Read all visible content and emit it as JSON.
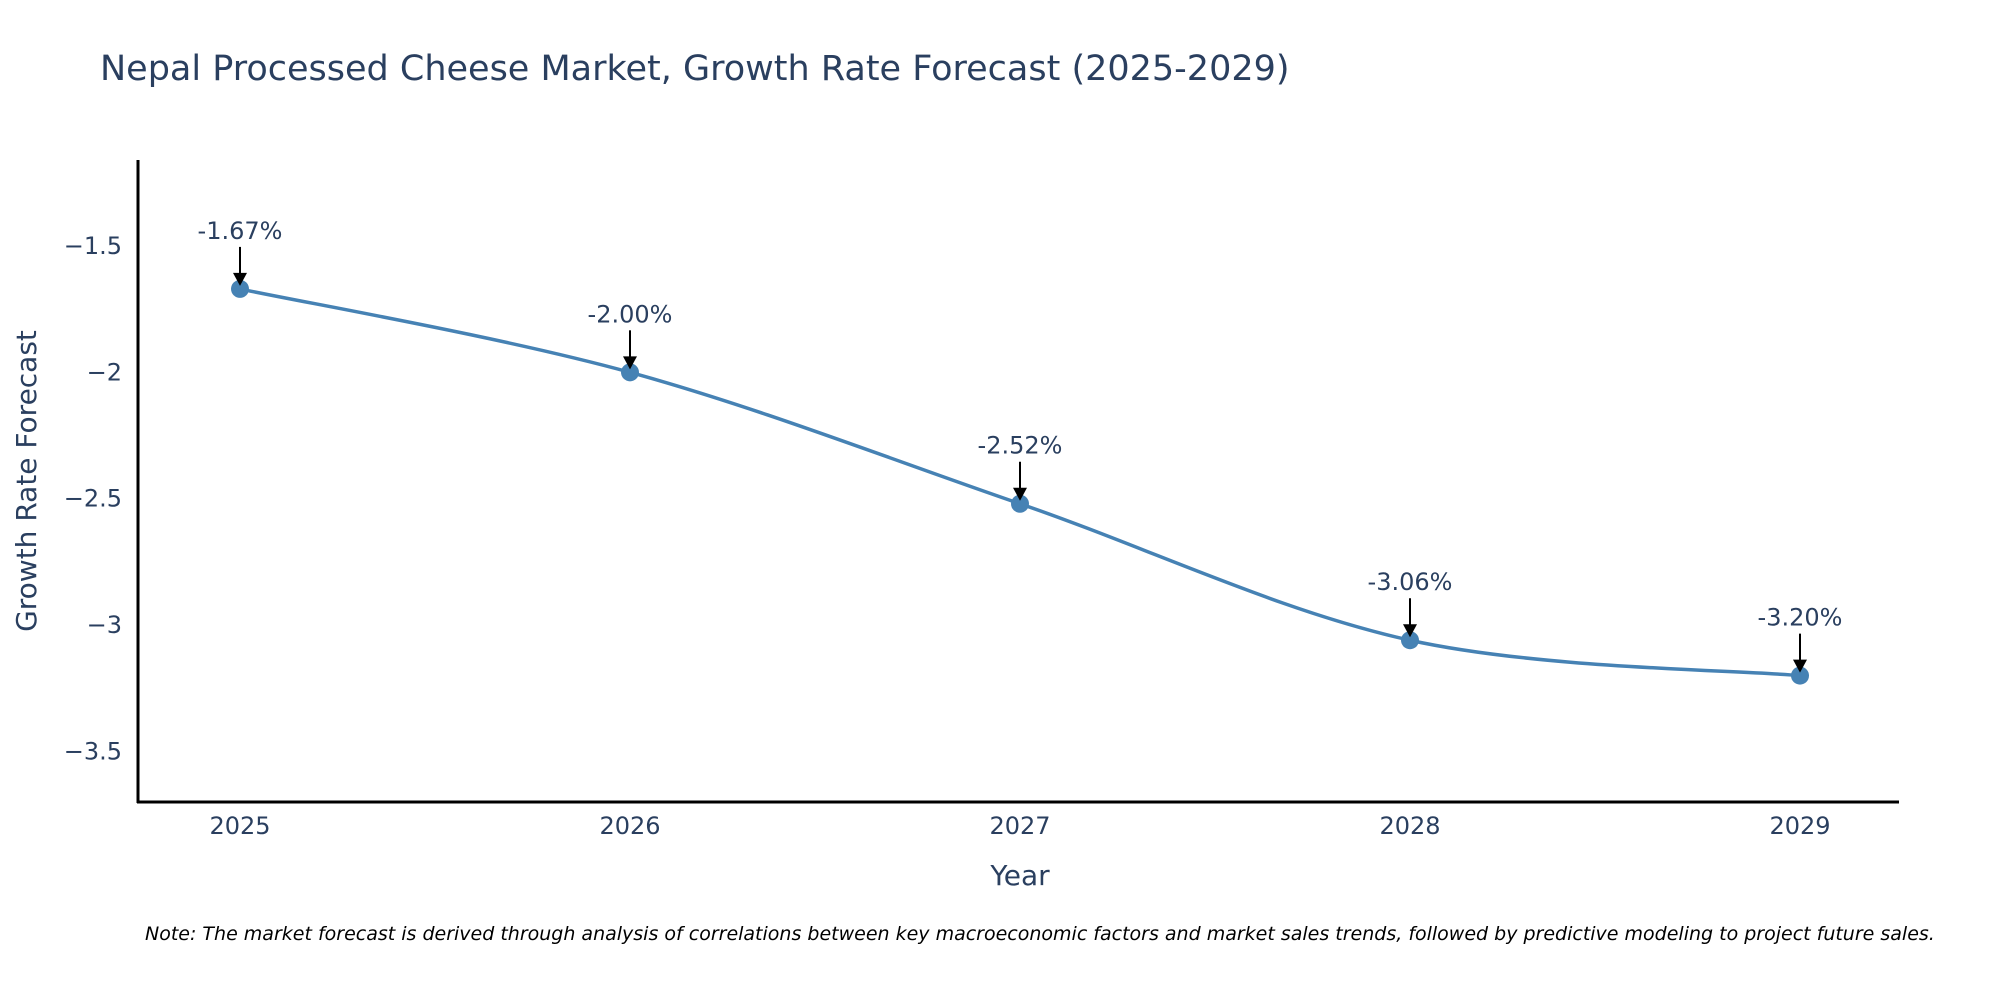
{
  "chart_data": {
    "type": "line",
    "title": "Nepal Processed Cheese Market, Growth Rate Forecast (2025-2029)",
    "xlabel": "Year",
    "ylabel": "Growth Rate Forecast",
    "categories": [
      "2025",
      "2026",
      "2027",
      "2028",
      "2029"
    ],
    "series": [
      {
        "name": "Growth Rate Forecast",
        "values": [
          -1.67,
          -2.0,
          -2.52,
          -3.06,
          -3.2
        ],
        "color": "#4682b4",
        "line_shape": "spline",
        "markers": true
      }
    ],
    "annotations": [
      "-1.67%",
      "-2.00%",
      "-2.52%",
      "-3.06%",
      "-3.20%"
    ],
    "yticks": [
      -1.5,
      -2,
      -2.5,
      -3,
      -3.5
    ],
    "ytick_labels": [
      "−1.5",
      "−2",
      "−2.5",
      "−3",
      "−3.5"
    ],
    "ylim": [
      -3.7,
      -1.16
    ],
    "grid": false,
    "legend": "none",
    "note": "Note: The market forecast is derived through analysis of correlations between key macroeconomic factors and market sales trends, followed by predictive modeling to project future sales."
  }
}
